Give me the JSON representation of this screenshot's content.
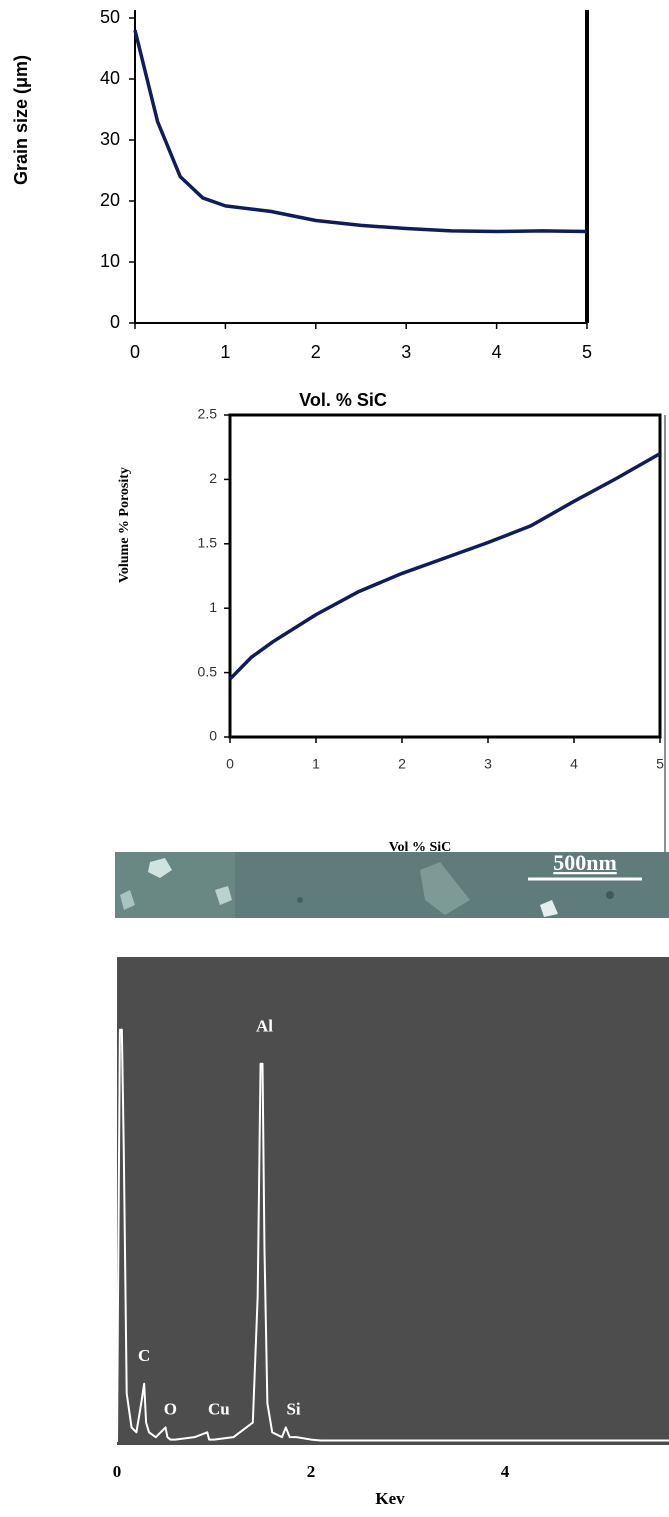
{
  "chart_data": [
    {
      "type": "line",
      "y_label": "Grain size (μm)",
      "x_label": "Vol. % SiC",
      "x": [
        0,
        0.25,
        0.5,
        0.75,
        1,
        1.5,
        2,
        2.5,
        3,
        3.5,
        4,
        4.5,
        5
      ],
      "values": [
        48,
        33,
        24,
        20.5,
        19.2,
        18.3,
        16.8,
        16,
        15.5,
        15.1,
        15,
        15.1,
        15
      ],
      "color": "#0f1d5a",
      "xlim": [
        0,
        5
      ],
      "ylim": [
        0,
        50
      ],
      "xticks": [
        0,
        1,
        2,
        3,
        4,
        5
      ],
      "yticks": [
        0,
        10,
        20,
        30,
        40,
        50
      ]
    },
    {
      "type": "line",
      "y_label": "Volume % Porosity",
      "x_label": "Vol % SiC",
      "x": [
        0,
        0.25,
        0.5,
        1,
        1.5,
        2,
        2.5,
        3,
        3.5,
        4,
        4.5,
        5
      ],
      "values": [
        0.45,
        0.62,
        0.74,
        0.95,
        1.13,
        1.27,
        1.39,
        1.51,
        1.64,
        1.83,
        2.01,
        2.2
      ],
      "color": "#0f1d5a",
      "xlim": [
        0,
        5
      ],
      "ylim": [
        0,
        2.5
      ],
      "xticks": [
        0,
        1,
        2,
        3,
        4,
        5
      ],
      "yticks": [
        0,
        0.5,
        1,
        1.5,
        2,
        2.5
      ]
    },
    {
      "type": "line",
      "x_label": "Kev",
      "x": [
        0,
        0.03,
        0.05,
        0.07,
        0.1,
        0.15,
        0.2,
        0.25,
        0.28,
        0.3,
        0.33,
        0.4,
        0.5,
        0.52,
        0.55,
        0.6,
        0.8,
        0.93,
        0.95,
        1.0,
        1.2,
        1.4,
        1.45,
        1.48,
        1.5,
        1.52,
        1.55,
        1.6,
        1.7,
        1.74,
        1.78,
        1.85,
        2.0,
        2.1,
        5.69
      ],
      "values": [
        0,
        85,
        85,
        60,
        10,
        3,
        2,
        8,
        12,
        4,
        2,
        1,
        3,
        1,
        0.5,
        0.5,
        1,
        2,
        0.5,
        0.5,
        1,
        4,
        30,
        78,
        78,
        40,
        8,
        2,
        1,
        3,
        1,
        1,
        0.5,
        0.3,
        0.3
      ],
      "color": "#ffffff",
      "xlim": [
        0,
        5.69
      ],
      "ylim": [
        0,
        100
      ],
      "xticks": [
        0,
        2,
        4
      ],
      "annotations": [
        {
          "text": "Al",
          "x": 1.52,
          "y": 83
        },
        {
          "text": "C",
          "x": 0.28,
          "y": 15
        },
        {
          "text": "O",
          "x": 0.55,
          "y": 4
        },
        {
          "text": "Cu",
          "x": 1.05,
          "y": 4
        },
        {
          "text": "Si",
          "x": 1.82,
          "y": 4
        }
      ]
    }
  ],
  "image": {
    "scale_label": "500nm"
  }
}
